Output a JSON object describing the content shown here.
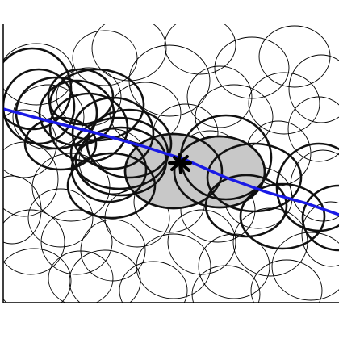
{
  "figure": {
    "background_color": "#ffffff",
    "frame_color": "#000000",
    "background_circles": {
      "stroke_color": "#000000",
      "count": 44
    },
    "selected_circles": {
      "stroke_color": "#111111",
      "count": 22
    },
    "highlighted_regions": {
      "fill_color": "#c8c8c8",
      "count": 2
    },
    "trajectory": {
      "color": "#1a1ae6"
    },
    "point_marker": {
      "color": "#000000"
    }
  }
}
